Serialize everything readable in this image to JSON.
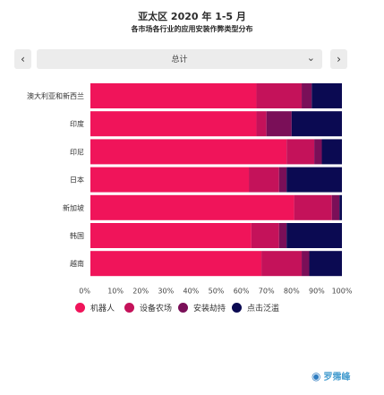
{
  "header": {
    "title": "亚太区 2020 年 1-5 月",
    "subtitle": "各市场各行业的应用安装作弊类型分布"
  },
  "controls": {
    "prev_icon": "chevron-left-icon",
    "prev_glyph": "‹",
    "next_icon": "chevron-right-icon",
    "next_glyph": "›",
    "select_value": "总计",
    "select_icon": "chevron-down-icon",
    "select_glyph": "⌄"
  },
  "chart_data": {
    "type": "bar",
    "orientation": "horizontal",
    "stacked": true,
    "title": "",
    "xlabel": "",
    "ylabel": "",
    "xlim": [
      0,
      100
    ],
    "x_ticks": [
      "0%",
      "10%",
      "20%",
      "30%",
      "40%",
      "50%",
      "60%",
      "70%",
      "80%",
      "90%",
      "100%"
    ],
    "grid": false,
    "legend_position": "bottom",
    "categories": [
      "澳大利亚和新西兰",
      "印度",
      "印尼",
      "日本",
      "新加坡",
      "韩国",
      "越南"
    ],
    "series": [
      {
        "name": "机器人",
        "color": "#f0145a",
        "values": [
          66,
          66,
          78,
          63,
          81,
          64,
          68
        ]
      },
      {
        "name": "设备农场",
        "color": "#c4125a",
        "values": [
          18,
          4,
          11,
          12,
          15,
          11,
          16
        ]
      },
      {
        "name": "安装劫持",
        "color": "#7a0f58",
        "values": [
          4,
          10,
          3,
          3,
          3,
          3,
          3
        ]
      },
      {
        "name": "点击泛滥",
        "color": "#0b0a52",
        "values": [
          12,
          20,
          8,
          22,
          1,
          22,
          13
        ]
      }
    ]
  },
  "watermark": {
    "text": "罗霈峰",
    "icon": "brand-logo-icon"
  }
}
